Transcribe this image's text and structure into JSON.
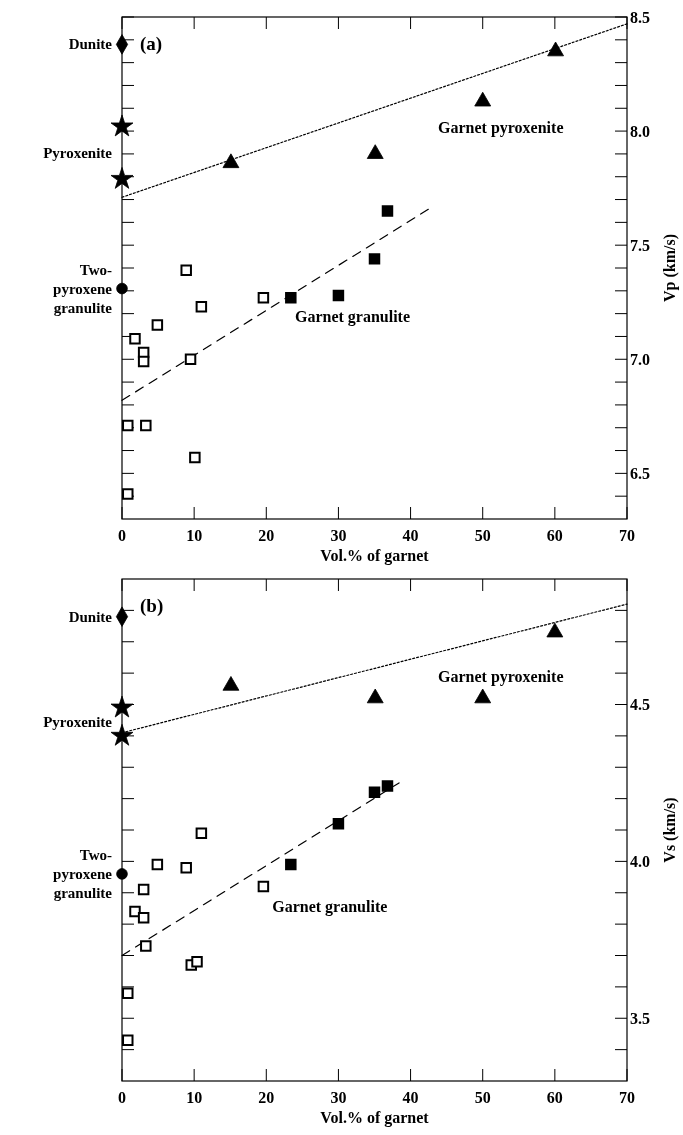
{
  "chart_data": [
    {
      "type": "scatter",
      "xlabel": "Vol.% of garnet",
      "ylabel": "Vp (km/s)",
      "xlim": [
        0,
        70
      ],
      "ylim": [
        6.3,
        8.5
      ],
      "xticks": [
        0,
        10,
        20,
        30,
        40,
        50,
        60,
        70
      ],
      "yticks": [
        {
          "value": 6.4,
          "label": null
        },
        6.5,
        {
          "value": 6.6,
          "label": null
        },
        {
          "value": 6.7,
          "label": null
        },
        {
          "value": 6.8,
          "label": null
        },
        {
          "value": 6.9,
          "label": null
        },
        {
          "value": 7,
          "label": "7.0"
        },
        {
          "value": 7.1,
          "label": null
        },
        {
          "value": 7.2,
          "label": null
        },
        {
          "value": 7.3,
          "label": null
        },
        {
          "value": 7.4,
          "label": null
        },
        7.5,
        {
          "value": 7.6,
          "label": null
        },
        {
          "value": 7.7,
          "label": null
        },
        {
          "value": 7.8,
          "label": null
        },
        {
          "value": 7.9,
          "label": null
        },
        {
          "value": 8,
          "label": "8.0"
        },
        {
          "value": 8.1,
          "label": null
        },
        {
          "value": 8.2,
          "label": null
        },
        {
          "value": 8.3,
          "label": null
        },
        {
          "value": 8.4,
          "label": null
        },
        8.5
      ],
      "legend": "left",
      "annotations": [
        "(a)"
      ],
      "series": [
        {
          "type": "line",
          "name": "Garnet pyroxenite",
          "x": [
            0,
            70
          ],
          "values": [
            7.71,
            8.47
          ],
          "color": "#000000",
          "line_style": "dotted"
        },
        {
          "type": "line",
          "name": "Garnet granulite",
          "x": [
            0,
            42.6
          ],
          "values": [
            6.82,
            7.66
          ],
          "color": "#000000",
          "line_style": "dashed"
        },
        {
          "name": "Dunite",
          "x": [
            0
          ],
          "values": [
            8.38
          ],
          "color": "#000000",
          "marker": "diamond"
        },
        {
          "name": "Pyroxenite",
          "x": [
            0,
            0
          ],
          "values": [
            8.02,
            7.79
          ],
          "color": "#000000",
          "marker": "star"
        },
        {
          "name": "Two-pyroxene granulite",
          "x": [
            0
          ],
          "values": [
            7.31
          ],
          "color": "#000000",
          "marker": "circle"
        },
        {
          "x": [
            15.1,
            35.1,
            50,
            60.1
          ],
          "values": [
            7.86,
            7.9,
            8.13,
            8.35
          ],
          "color": "#000000",
          "marker": "triangle"
        },
        {
          "x": [
            36.8,
            35,
            23.4,
            30
          ],
          "values": [
            7.65,
            7.44,
            7.27,
            7.28
          ],
          "color": "#000000",
          "marker": "square"
        },
        {
          "x": [
            8.9,
            19.6,
            11,
            4.9,
            1.8,
            3,
            3,
            9.5,
            0.8,
            3.3,
            10.1,
            0.8
          ],
          "values": [
            7.39,
            7.27,
            7.23,
            7.15,
            7.09,
            7.03,
            6.99,
            7.0,
            6.71,
            6.71,
            6.57,
            6.41
          ],
          "color": "#ffffff",
          "marker": "square"
        }
      ]
    },
    {
      "type": "scatter",
      "xlabel": "Vol.% of garnet",
      "ylabel": "Vs (km/s)",
      "xlim": [
        0,
        70
      ],
      "ylim": [
        3.3,
        4.9
      ],
      "xticks": [
        0,
        10,
        20,
        30,
        40,
        50,
        60,
        70
      ],
      "yticks": [
        {
          "value": 3.4,
          "label": null
        },
        3.5,
        {
          "value": 3.6,
          "label": null
        },
        {
          "value": 3.7,
          "label": null
        },
        {
          "value": 3.8,
          "label": null
        },
        {
          "value": 3.9,
          "label": null
        },
        {
          "value": 4,
          "label": "4.0"
        },
        {
          "value": 4.1,
          "label": null
        },
        {
          "value": 4.2,
          "label": null
        },
        {
          "value": 4.3,
          "label": null
        },
        {
          "value": 4.4,
          "label": null
        },
        4.5,
        {
          "value": 4.6,
          "label": null
        },
        {
          "value": 4.7,
          "label": null
        },
        {
          "value": 4.8,
          "label": null
        }
      ],
      "legend": "left",
      "annotations": [
        "(b)"
      ],
      "series": [
        {
          "type": "line",
          "name": "Garnet pyroxenite",
          "x": [
            0,
            70
          ],
          "values": [
            4.41,
            4.82
          ],
          "color": "#000000",
          "line_style": "dotted"
        },
        {
          "type": "line",
          "name": "Garnet granulite",
          "x": [
            0,
            38.4
          ],
          "values": [
            3.7,
            4.25
          ],
          "color": "#000000",
          "line_style": "dashed"
        },
        {
          "name": "Dunite",
          "x": [
            0
          ],
          "values": [
            4.78
          ],
          "color": "#000000",
          "marker": "diamond"
        },
        {
          "name": "Pyroxenite",
          "x": [
            0,
            0
          ],
          "values": [
            4.49,
            4.4
          ],
          "color": "#000000",
          "marker": "star"
        },
        {
          "name": "Two-pyroxene granulite",
          "x": [
            0
          ],
          "values": [
            3.96
          ],
          "color": "#000000",
          "marker": "circle"
        },
        {
          "x": [
            15.1,
            35.1,
            50,
            60
          ],
          "values": [
            4.56,
            4.52,
            4.52,
            4.73
          ],
          "color": "#000000",
          "marker": "triangle"
        },
        {
          "x": [
            36.8,
            35,
            30,
            23.4
          ],
          "values": [
            4.24,
            4.22,
            4.12,
            3.99
          ],
          "color": "#000000",
          "marker": "square"
        },
        {
          "x": [
            11,
            4.9,
            8.9,
            19.6,
            3,
            1.8,
            3,
            3.3,
            9.6,
            10.4,
            0.8,
            0.8
          ],
          "values": [
            4.09,
            3.99,
            3.98,
            3.92,
            3.91,
            3.84,
            3.82,
            3.73,
            3.67,
            3.68,
            3.58,
            3.43
          ],
          "color": "#ffffff",
          "marker": "square"
        }
      ]
    }
  ]
}
